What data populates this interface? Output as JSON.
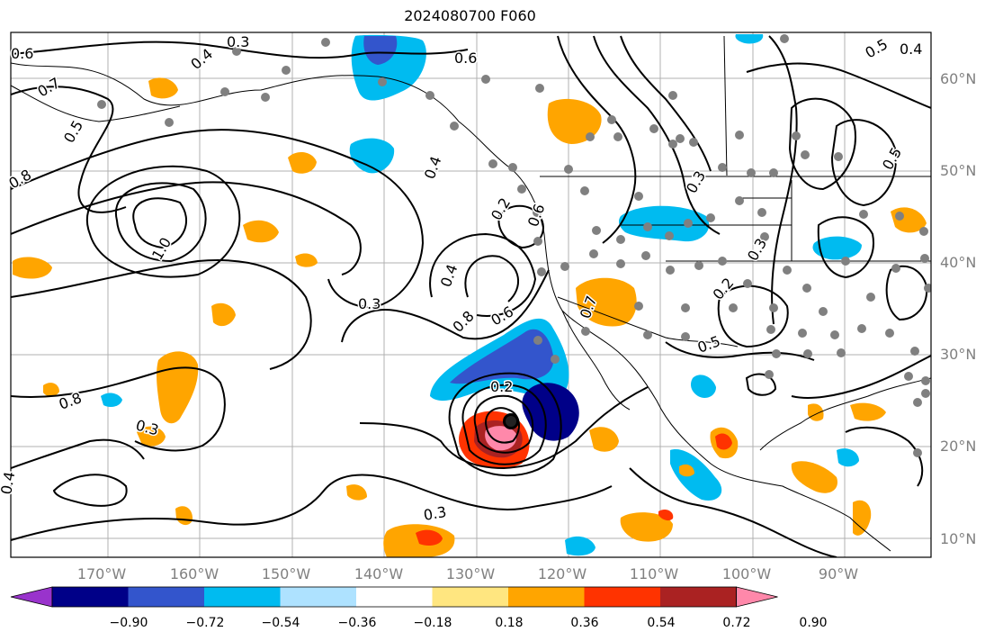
{
  "title": "2024080700 F060",
  "latitude_labels": [
    "60°N",
    "50°N",
    "40°N",
    "30°N",
    "20°N",
    "10°N"
  ],
  "longitude_labels": [
    "170°W",
    "160°W",
    "150°W",
    "140°W",
    "130°W",
    "120°W",
    "110°W",
    "100°W",
    "90°W"
  ],
  "contour_labels": [
    "0.6",
    "0.3",
    "0.4",
    "0.7",
    "0.8",
    "1.0",
    "0.5",
    "0.2",
    "0.6",
    "0.4",
    "0.3",
    "0.8",
    "0.3",
    "0.4",
    "0.3",
    "0.2",
    "0.3",
    "0.2",
    "0.5",
    "0.4",
    "0.5",
    "0.5",
    "0.4",
    "0.8",
    "0.6",
    "0.7",
    "0.6",
    "0.3"
  ],
  "colorbar": {
    "ticks": [
      "−0.90",
      "−0.72",
      "−0.54",
      "−0.36",
      "−0.18",
      "0.18",
      "0.36",
      "0.54",
      "0.72",
      "0.90"
    ],
    "colors": [
      "#9933cc",
      "#000088",
      "#3355cc",
      "#00bbf0",
      "#aee2ff",
      "#ffffff",
      "#ffe680",
      "#ffa500",
      "#ff3300",
      "#aa2222",
      "#ff88aa"
    ]
  },
  "legend_colors": {
    "positive_orange": "#ffa500",
    "positive_red": "#ff3300",
    "negative_blue": "#00bbf0",
    "negative_dark": "#000088",
    "station_dot": "#808080"
  }
}
